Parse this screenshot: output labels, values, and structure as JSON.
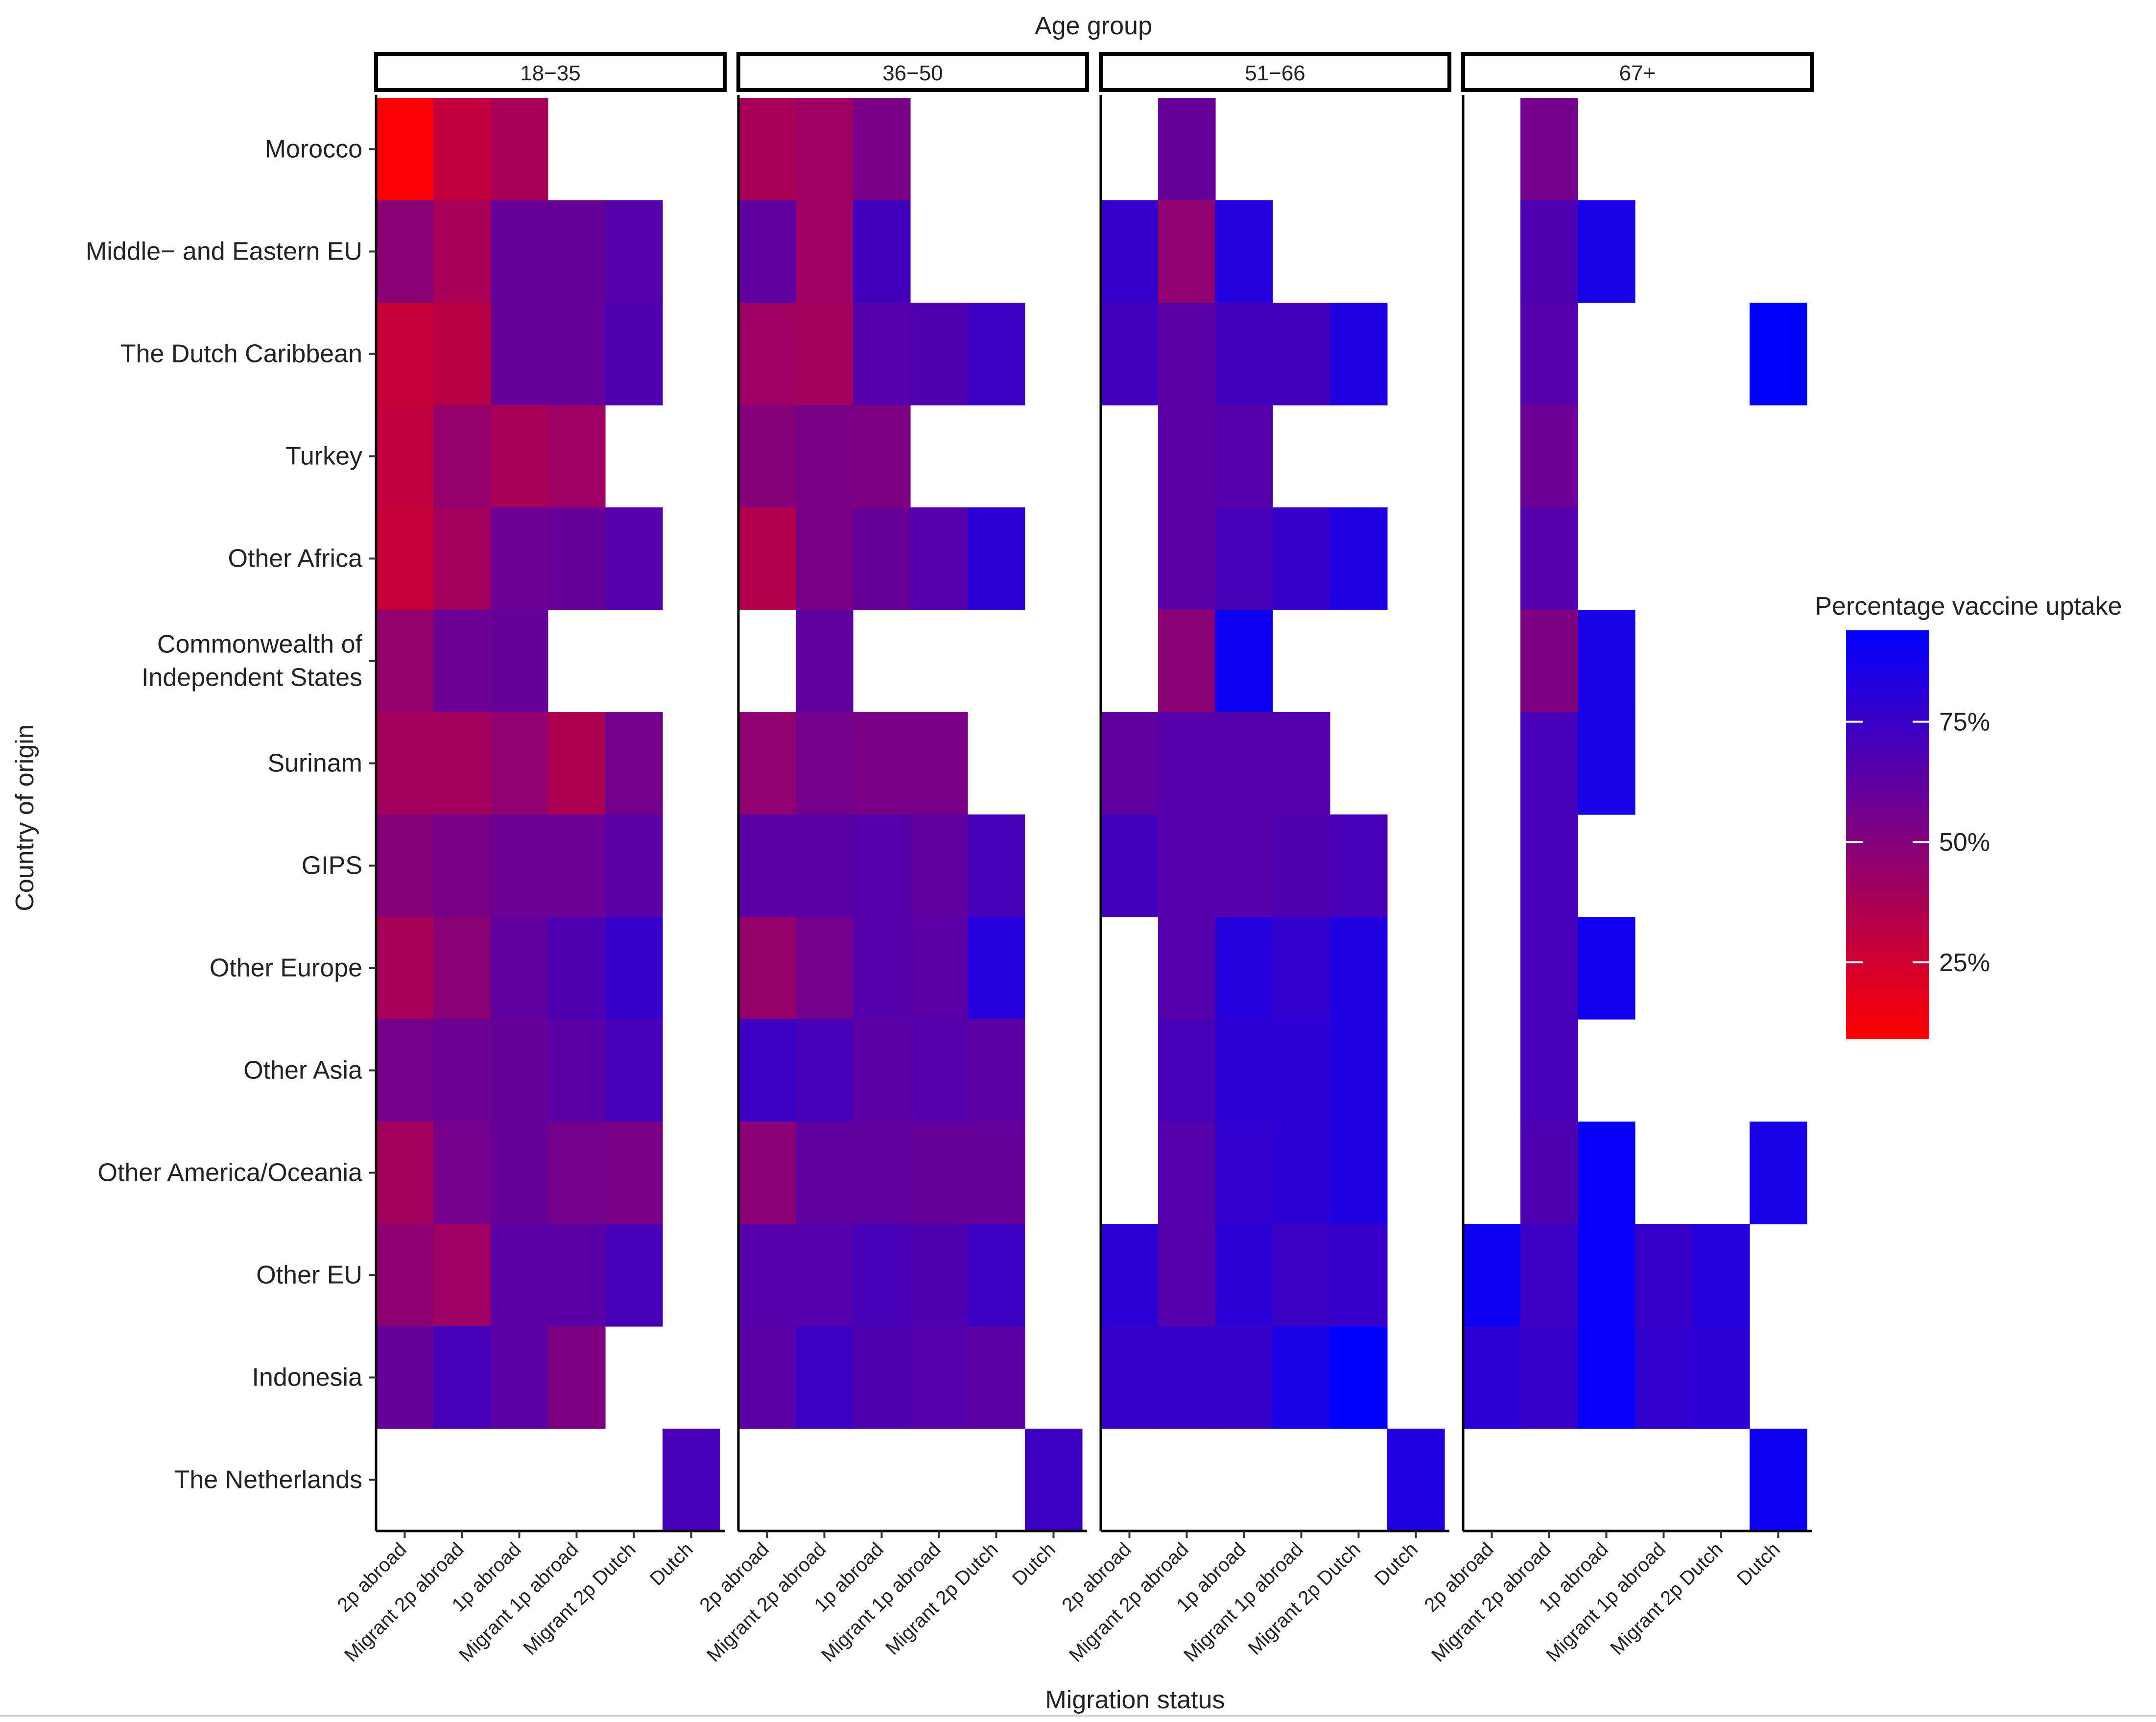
{
  "chart_data": {
    "type": "heatmap",
    "title": "Age group",
    "xlabel": "Migration status",
    "ylabel": "Country of origin",
    "legend": {
      "title": "Percentage vaccine uptake",
      "position": "right",
      "ticks": [
        {
          "value": 25,
          "label": "25%"
        },
        {
          "value": 50,
          "label": "50%"
        },
        {
          "value": 75,
          "label": "75%"
        }
      ],
      "range": [
        9,
        94
      ],
      "low_color": "#ff0000",
      "high_color": "#0000ff"
    },
    "facets": [
      "18−35",
      "36−50",
      "51−66",
      "67+"
    ],
    "x_categories": [
      "2p abroad",
      "Migrant 2p abroad",
      "1p abroad",
      "Migrant 1p abroad",
      "Migrant 2p Dutch",
      "Dutch"
    ],
    "y_categories": [
      "Morocco",
      "Middle− and Eastern EU",
      "The Dutch Caribbean",
      "Turkey",
      "Other Africa",
      "Commonwealth of Independent States",
      "Surinam",
      "GIPS",
      "Other Europe",
      "Other Asia",
      "Other America/Oceania",
      "Other EU",
      "Indonesia",
      "The Netherlands"
    ],
    "y_label_lines": [
      [
        "Morocco"
      ],
      [
        "Middle− and Eastern EU"
      ],
      [
        "The Dutch Caribbean"
      ],
      [
        "Turkey"
      ],
      [
        "Other Africa"
      ],
      [
        "Commonwealth of",
        "Independent States"
      ],
      [
        "Surinam"
      ],
      [
        "GIPS"
      ],
      [
        "Other Europe"
      ],
      [
        "Other Asia"
      ],
      [
        "Other America/Oceania"
      ],
      [
        "Other EU"
      ],
      [
        "Indonesia"
      ],
      [
        "The Netherlands"
      ]
    ],
    "values": [
      [
        [
          10,
          30,
          38,
          null,
          null,
          null
        ],
        [
          48,
          38,
          60,
          60,
          66,
          null
        ],
        [
          28,
          32,
          60,
          60,
          68,
          null
        ],
        [
          30,
          45,
          38,
          42,
          null,
          null
        ],
        [
          28,
          40,
          58,
          60,
          66,
          null
        ],
        [
          45,
          58,
          60,
          null,
          null,
          null
        ],
        [
          40,
          40,
          46,
          36,
          56,
          null
        ],
        [
          50,
          54,
          58,
          58,
          64,
          null
        ],
        [
          38,
          48,
          62,
          68,
          76,
          null
        ],
        [
          56,
          58,
          60,
          64,
          70,
          null
        ],
        [
          40,
          56,
          60,
          56,
          54,
          null
        ],
        [
          47,
          42,
          64,
          64,
          70,
          null
        ],
        [
          60,
          70,
          64,
          52,
          null,
          null
        ],
        [
          null,
          null,
          null,
          null,
          null,
          70
        ]
      ],
      [
        [
          38,
          42,
          54,
          null,
          null,
          null
        ],
        [
          62,
          42,
          72,
          null,
          null,
          null
        ],
        [
          42,
          40,
          66,
          68,
          74,
          null
        ],
        [
          50,
          54,
          52,
          null,
          null,
          null
        ],
        [
          34,
          54,
          60,
          66,
          80,
          null
        ],
        [
          null,
          62,
          null,
          null,
          null,
          null
        ],
        [
          46,
          56,
          54,
          54,
          null,
          null
        ],
        [
          64,
          64,
          66,
          62,
          70,
          null
        ],
        [
          44,
          56,
          66,
          64,
          82,
          null
        ],
        [
          74,
          70,
          64,
          66,
          64,
          null
        ],
        [
          48,
          62,
          62,
          60,
          60,
          null
        ],
        [
          66,
          66,
          70,
          68,
          74,
          null
        ],
        [
          64,
          74,
          68,
          66,
          64,
          null
        ],
        [
          null,
          null,
          null,
          null,
          null,
          74
        ]
      ],
      [
        [
          null,
          60,
          null,
          null,
          null,
          null
        ],
        [
          76,
          46,
          82,
          null,
          null,
          null
        ],
        [
          72,
          64,
          72,
          72,
          84,
          null
        ],
        [
          null,
          64,
          66,
          null,
          null,
          null
        ],
        [
          null,
          64,
          70,
          76,
          84,
          null
        ],
        [
          null,
          48,
          90,
          null,
          null,
          null
        ],
        [
          62,
          66,
          66,
          66,
          null,
          null
        ],
        [
          72,
          66,
          66,
          68,
          70,
          null
        ],
        [
          null,
          66,
          82,
          78,
          84,
          null
        ],
        [
          null,
          70,
          80,
          80,
          84,
          null
        ],
        [
          null,
          66,
          78,
          80,
          84,
          null
        ],
        [
          80,
          66,
          80,
          74,
          76,
          null
        ],
        [
          76,
          76,
          76,
          86,
          94,
          null
        ],
        [
          null,
          null,
          null,
          null,
          null,
          84
        ]
      ],
      [
        [
          null,
          56,
          null,
          null,
          null,
          null
        ],
        [
          null,
          68,
          86,
          null,
          null,
          null
        ],
        [
          null,
          66,
          null,
          null,
          null,
          94
        ],
        [
          null,
          58,
          null,
          null,
          null,
          null
        ],
        [
          null,
          66,
          null,
          null,
          null,
          null
        ],
        [
          null,
          52,
          86,
          null,
          null,
          null
        ],
        [
          null,
          70,
          86,
          null,
          null,
          null
        ],
        [
          null,
          70,
          null,
          null,
          null,
          null
        ],
        [
          null,
          70,
          88,
          null,
          null,
          null
        ],
        [
          null,
          70,
          null,
          null,
          null,
          null
        ],
        [
          null,
          68,
          92,
          null,
          null,
          86
        ],
        [
          90,
          74,
          92,
          76,
          82,
          null
        ],
        [
          80,
          76,
          92,
          78,
          80,
          null
        ],
        [
          null,
          null,
          null,
          null,
          null,
          90
        ]
      ]
    ]
  }
}
